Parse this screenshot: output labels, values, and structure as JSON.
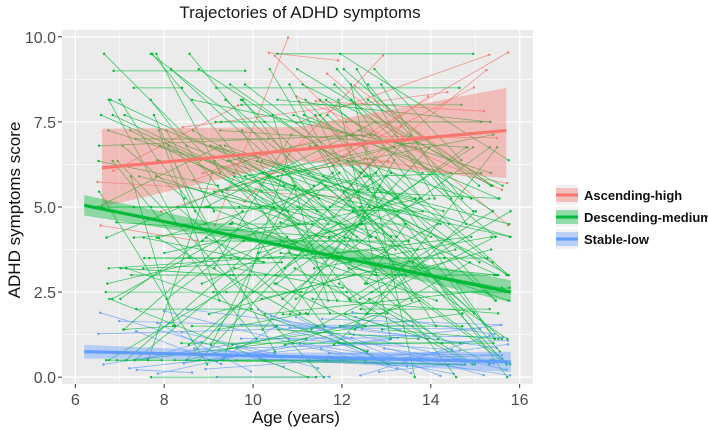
{
  "chart_data": {
    "type": "line",
    "title": "Trajectories of ADHD symptoms",
    "xlabel": "Age (years)",
    "ylabel": "ADHD symptoms score",
    "xlim": [
      5.7,
      16.3
    ],
    "ylim": [
      -0.2,
      10.2
    ],
    "x_ticks": [
      6,
      8,
      10,
      12,
      14,
      16
    ],
    "x_tick_labels": [
      "6",
      "8",
      "10",
      "12",
      "14",
      "16"
    ],
    "y_ticks": [
      0,
      2.5,
      5,
      7.5,
      10
    ],
    "y_tick_labels": [
      "0.0",
      "2.5",
      "5.0",
      "7.5",
      "10.0"
    ],
    "grid": true,
    "legend_position": "right",
    "series": [
      {
        "name": "Ascending-high",
        "color": "#f8766d",
        "fit": {
          "x": [
            6.6,
            15.7
          ],
          "y": [
            6.15,
            7.25
          ]
        },
        "ci": {
          "x": [
            6.6,
            11.0,
            15.7
          ],
          "lower": [
            5.0,
            6.35,
            5.85
          ],
          "upper": [
            7.3,
            7.35,
            8.5
          ]
        },
        "individuals": 25
      },
      {
        "name": "Descending-medium",
        "color": "#00ba38",
        "fit": {
          "x": [
            6.2,
            15.8
          ],
          "y": [
            5.05,
            2.5
          ]
        },
        "ci": {
          "x": [
            6.2,
            10.5,
            15.8
          ],
          "lower": [
            4.75,
            3.85,
            2.2
          ],
          "upper": [
            5.35,
            4.15,
            2.85
          ]
        },
        "individuals": 230
      },
      {
        "name": "Stable-low",
        "color": "#619cff",
        "fit": {
          "x": [
            6.2,
            15.8
          ],
          "y": [
            0.75,
            0.45
          ]
        },
        "ci": {
          "x": [
            6.2,
            10.5,
            15.8
          ],
          "lower": [
            0.55,
            0.5,
            0.15
          ],
          "upper": [
            0.95,
            0.72,
            0.75
          ]
        },
        "individuals": 45
      }
    ]
  }
}
